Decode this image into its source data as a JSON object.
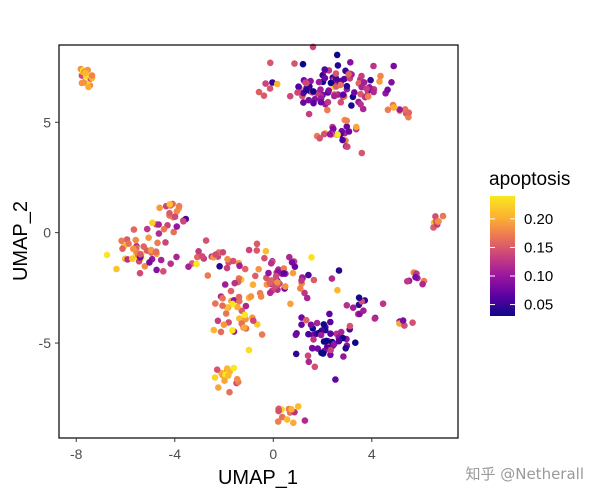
{
  "chart_data": {
    "type": "scatter",
    "xlabel": "UMAP_1",
    "ylabel": "UMAP_2",
    "xlim": [
      -8.7,
      7.5
    ],
    "ylim": [
      -9.3,
      8.5
    ],
    "xticks": [
      -8,
      -4,
      0,
      4
    ],
    "xtick_labels": [
      "-8",
      "-4",
      "0",
      "4"
    ],
    "yticks": [
      -5,
      0,
      5
    ],
    "ytick_labels": [
      "-5",
      "0",
      "5"
    ],
    "grid": false,
    "color_variable": "apoptosis",
    "color_range": [
      0.03,
      0.24
    ],
    "colorscale": "plasma",
    "colorscale_stops": [
      "#0d0887",
      "#5b02a3",
      "#9a169f",
      "#c9417e",
      "#ec7853",
      "#fdb42f",
      "#f9e721"
    ],
    "legend": {
      "title": "apoptosis",
      "position": "right",
      "ticks": [
        0.2,
        0.15,
        0.1,
        0.05
      ],
      "tick_labels": [
        "0.20",
        "0.15",
        "0.10",
        "0.05"
      ]
    },
    "clusters": [
      {
        "center": [
          -7.6,
          7.0
        ],
        "spread": [
          0.22,
          0.45
        ],
        "n": 16,
        "mean": 0.2,
        "var": 0.03
      },
      {
        "center": [
          2.6,
          6.6
        ],
        "spread": [
          1.5,
          0.75
        ],
        "n": 110,
        "mean": 0.1,
        "var": 0.05
      },
      {
        "center": [
          2.9,
          4.5
        ],
        "spread": [
          0.7,
          0.55
        ],
        "n": 26,
        "mean": 0.12,
        "var": 0.05
      },
      {
        "center": [
          4.9,
          5.6
        ],
        "spread": [
          0.55,
          0.2
        ],
        "n": 10,
        "mean": 0.17,
        "var": 0.03
      },
      {
        "center": [
          -5.4,
          -0.8
        ],
        "spread": [
          0.75,
          0.8
        ],
        "n": 48,
        "mean": 0.18,
        "var": 0.04
      },
      {
        "center": [
          -4.1,
          0.6
        ],
        "spread": [
          0.45,
          0.75
        ],
        "n": 22,
        "mean": 0.16,
        "var": 0.04
      },
      {
        "center": [
          -2.8,
          -1.2
        ],
        "spread": [
          0.7,
          0.6
        ],
        "n": 18,
        "mean": 0.13,
        "var": 0.05
      },
      {
        "center": [
          -1.4,
          -3.2
        ],
        "spread": [
          0.8,
          1.1
        ],
        "n": 48,
        "mean": 0.17,
        "var": 0.04
      },
      {
        "center": [
          0.4,
          -2.0
        ],
        "spread": [
          1.0,
          0.9
        ],
        "n": 55,
        "mean": 0.15,
        "var": 0.05
      },
      {
        "center": [
          2.2,
          -4.8
        ],
        "spread": [
          0.9,
          0.85
        ],
        "n": 55,
        "mean": 0.07,
        "var": 0.04
      },
      {
        "center": [
          3.8,
          -3.4
        ],
        "spread": [
          0.55,
          0.35
        ],
        "n": 12,
        "mean": 0.08,
        "var": 0.03
      },
      {
        "center": [
          -1.9,
          -6.6
        ],
        "spread": [
          0.35,
          0.45
        ],
        "n": 16,
        "mean": 0.19,
        "var": 0.03
      },
      {
        "center": [
          0.5,
          -8.2
        ],
        "spread": [
          0.45,
          0.35
        ],
        "n": 14,
        "mean": 0.18,
        "var": 0.04
      },
      {
        "center": [
          6.6,
          0.6
        ],
        "spread": [
          0.25,
          0.3
        ],
        "n": 8,
        "mean": 0.18,
        "var": 0.03
      },
      {
        "center": [
          5.8,
          -2.1
        ],
        "spread": [
          0.3,
          0.25
        ],
        "n": 8,
        "mean": 0.13,
        "var": 0.04
      },
      {
        "center": [
          5.4,
          -4.1
        ],
        "spread": [
          0.2,
          0.15
        ],
        "n": 5,
        "mean": 0.13,
        "var": 0.03
      }
    ]
  },
  "watermark": "知乎 @Netherall"
}
